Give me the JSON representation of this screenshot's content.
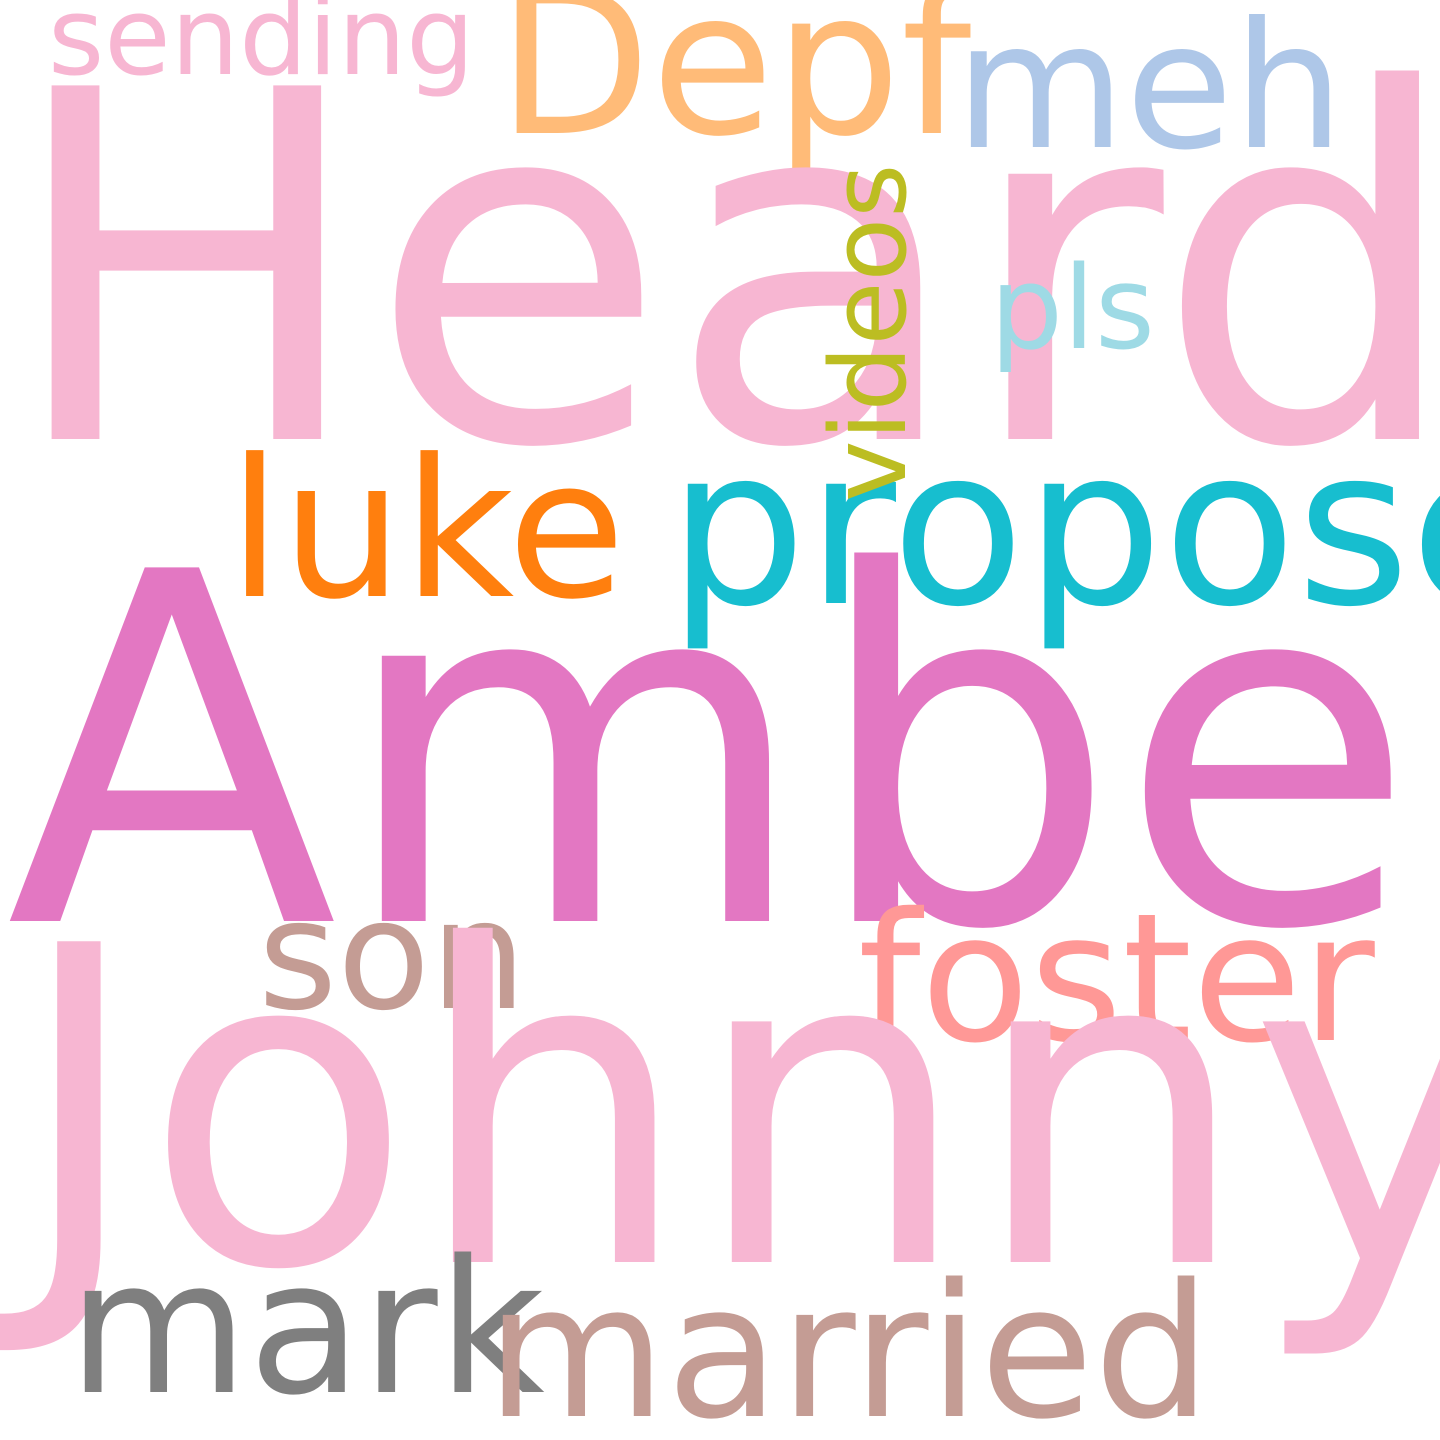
{
  "words": {
    "heard": {
      "text": "Heard",
      "color": "#f7b6d2"
    },
    "amber": {
      "text": "Amber",
      "color": "#e377c2"
    },
    "johnny": {
      "text": "Johnny",
      "color": "#f7b6d2"
    },
    "depf": {
      "text": "Depf",
      "color": "#ffbb78"
    },
    "meh": {
      "text": "meh",
      "color": "#aec7e8"
    },
    "sending": {
      "text": "sending",
      "color": "#f7b6d2"
    },
    "pls": {
      "text": "pls",
      "color": "#9edae5"
    },
    "luke": {
      "text": "luke",
      "color": "#ff7f0e"
    },
    "proposed": {
      "text": "proposed",
      "color": "#17becf"
    },
    "videos": {
      "text": "videos",
      "color": "#bcbd22"
    },
    "son": {
      "text": "son",
      "color": "#c49c94"
    },
    "foster": {
      "text": "foster",
      "color": "#ff9896"
    },
    "mark": {
      "text": "mark",
      "color": "#7f7f7f"
    },
    "married": {
      "text": "married",
      "color": "#c49c94"
    }
  }
}
